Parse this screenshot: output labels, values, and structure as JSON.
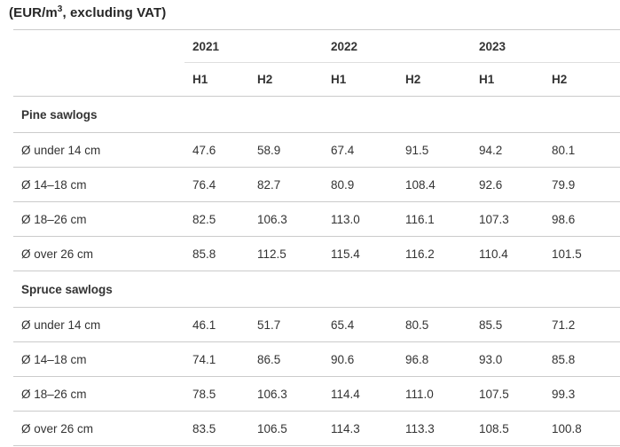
{
  "title": {
    "prefix": "(EUR/m",
    "superscript": "3",
    "suffix": ", excluding VAT)"
  },
  "colors": {
    "background": "#ffffff",
    "title_text": "#262626",
    "body_text": "#333333",
    "rule_strong": "#cbcbcb",
    "rule_light": "#dfdfdf"
  },
  "table": {
    "year_headers": [
      "2021",
      "2022",
      "2023"
    ],
    "half_headers": [
      "H1",
      "H2"
    ],
    "sections": [
      {
        "header": "Pine sawlogs",
        "rows": [
          {
            "label": "Ø under 14 cm",
            "values": [
              "47.6",
              "58.9",
              "67.4",
              "91.5",
              "94.2",
              "80.1"
            ]
          },
          {
            "label": "Ø 14–18 cm",
            "values": [
              "76.4",
              "82.7",
              "80.9",
              "108.4",
              "92.6",
              "79.9"
            ]
          },
          {
            "label": "Ø 18–26 cm",
            "values": [
              "82.5",
              "106.3",
              "113.0",
              "116.1",
              "107.3",
              "98.6"
            ]
          },
          {
            "label": "Ø over 26 cm",
            "values": [
              "85.8",
              "112.5",
              "115.4",
              "116.2",
              "110.4",
              "101.5"
            ]
          }
        ]
      },
      {
        "header": "Spruce sawlogs",
        "rows": [
          {
            "label": "Ø under 14 cm",
            "values": [
              "46.1",
              "51.7",
              "65.4",
              "80.5",
              "85.5",
              "71.2"
            ]
          },
          {
            "label": "Ø 14–18 cm",
            "values": [
              "74.1",
              "86.5",
              "90.6",
              "96.8",
              "93.0",
              "85.8"
            ]
          },
          {
            "label": "Ø 18–26 cm",
            "values": [
              "78.5",
              "106.3",
              "114.4",
              "111.0",
              "107.5",
              "99.3"
            ]
          },
          {
            "label": "Ø over 26 cm",
            "values": [
              "83.5",
              "106.5",
              "114.3",
              "113.3",
              "108.5",
              "100.8"
            ]
          }
        ]
      }
    ]
  },
  "chart_data": {
    "type": "table",
    "title": "(EUR/m3, excluding VAT)",
    "column_groups": [
      "2021",
      "2022",
      "2023"
    ],
    "columns": [
      "2021 H1",
      "2021 H2",
      "2022 H1",
      "2022 H2",
      "2023 H1",
      "2023 H2"
    ],
    "sections": [
      {
        "name": "Pine sawlogs",
        "rows": [
          {
            "label": "Ø under 14 cm",
            "values": [
              47.6,
              58.9,
              67.4,
              91.5,
              94.2,
              80.1
            ]
          },
          {
            "label": "Ø 14–18 cm",
            "values": [
              76.4,
              82.7,
              80.9,
              108.4,
              92.6,
              79.9
            ]
          },
          {
            "label": "Ø 18–26 cm",
            "values": [
              82.5,
              106.3,
              113.0,
              116.1,
              107.3,
              98.6
            ]
          },
          {
            "label": "Ø over 26 cm",
            "values": [
              85.8,
              112.5,
              115.4,
              116.2,
              110.4,
              101.5
            ]
          }
        ]
      },
      {
        "name": "Spruce sawlogs",
        "rows": [
          {
            "label": "Ø under 14 cm",
            "values": [
              46.1,
              51.7,
              65.4,
              80.5,
              85.5,
              71.2
            ]
          },
          {
            "label": "Ø 14–18 cm",
            "values": [
              74.1,
              86.5,
              90.6,
              96.8,
              93.0,
              85.8
            ]
          },
          {
            "label": "Ø 18–26 cm",
            "values": [
              78.5,
              106.3,
              114.4,
              111.0,
              107.5,
              99.3
            ]
          },
          {
            "label": "Ø over 26 cm",
            "values": [
              83.5,
              106.5,
              114.3,
              113.3,
              108.5,
              100.8
            ]
          }
        ]
      }
    ]
  }
}
